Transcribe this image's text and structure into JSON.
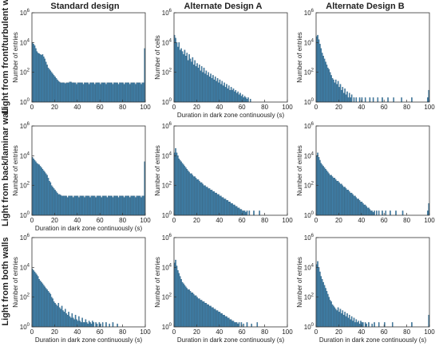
{
  "figure": {
    "column_titles": [
      "Standard design",
      "Alternate Design A",
      "Alternate Design B"
    ],
    "row_titles": [
      "Light from front/turbulent wall",
      "Light from back/laminar wall",
      "Light from both walls"
    ],
    "colors": {
      "bar_fill": "#3f7fa8",
      "bar_edge": "#1f4c6b",
      "axis": "#333333",
      "text": "#222222"
    }
  },
  "chart_data": [
    {
      "type": "bar",
      "row": 0,
      "col": 0,
      "xlabel": "",
      "ylabel": "Number of entries",
      "xlim": [
        0,
        100
      ],
      "ylim_log10": [
        0,
        6
      ],
      "xticks": [
        0,
        20,
        40,
        60,
        80,
        100
      ],
      "yticks": [
        0,
        2,
        4,
        6
      ],
      "bin_edges_x": [
        0,
        100
      ],
      "log10_counts": [
        4.0,
        3.9,
        3.8,
        3.6,
        3.4,
        3.3,
        3.25,
        3.2,
        3.15,
        3.2,
        3.05,
        2.9,
        2.7,
        2.5,
        2.3,
        2.2,
        2.1,
        2.0,
        1.9,
        1.8,
        1.7,
        1.6,
        1.5,
        1.4,
        1.35,
        1.3,
        1.3,
        1.3,
        1.3,
        1.25,
        1.3,
        1.3,
        1.3,
        1.35,
        1.35,
        1.3,
        1.3,
        1.3,
        1.3,
        1.2,
        1.3,
        1.3,
        1.3,
        1.3,
        1.3,
        1.2,
        1.3,
        1.3,
        1.3,
        1.3,
        1.2,
        1.3,
        1.3,
        1.3,
        1.3,
        1.2,
        1.3,
        1.3,
        1.3,
        1.3,
        1.2,
        1.3,
        1.3,
        1.3,
        1.3,
        1.2,
        1.3,
        1.3,
        1.3,
        1.3,
        1.3,
        1.2,
        1.3,
        1.3,
        1.3,
        1.3,
        1.2,
        1.3,
        1.3,
        1.3,
        1.3,
        1.2,
        1.3,
        1.3,
        1.3,
        1.3,
        1.2,
        1.3,
        1.3,
        1.3,
        1.3,
        1.2,
        1.3,
        1.3,
        1.3,
        1.3,
        1.2,
        1.3,
        1.3,
        3.6
      ]
    },
    {
      "type": "bar",
      "row": 0,
      "col": 1,
      "xlabel": "Duration in dark zone continuously (s)",
      "ylabel": "Number of cells",
      "xlim": [
        0,
        100
      ],
      "ylim_log10": [
        0,
        6
      ],
      "xticks": [
        0,
        20,
        40,
        60,
        80,
        100
      ],
      "yticks": [
        0,
        2,
        4,
        6
      ],
      "bin_edges_x": [
        0,
        100
      ],
      "log10_counts": [
        4.5,
        4.3,
        4.0,
        3.7,
        4.0,
        3.5,
        3.6,
        3.4,
        3.2,
        3.5,
        3.1,
        3.3,
        2.8,
        3.2,
        2.9,
        2.7,
        3.0,
        2.5,
        2.8,
        2.4,
        2.6,
        2.3,
        2.5,
        2.1,
        2.4,
        2.0,
        2.3,
        1.9,
        2.1,
        1.8,
        2.0,
        1.7,
        1.9,
        1.6,
        1.8,
        1.5,
        1.7,
        1.4,
        1.6,
        1.3,
        1.5,
        1.2,
        1.4,
        1.1,
        1.3,
        1.0,
        1.2,
        0.9,
        1.1,
        0.8,
        1.0,
        0.8,
        0.9,
        0.7,
        0.8,
        0.6,
        0.7,
        0.5,
        0.6,
        0.4,
        0.5,
        0.3,
        0.4,
        0.3,
        0.2,
        0.3,
        0.0,
        0.2,
        0.0,
        0.0,
        0.0,
        0.0,
        0.0,
        0.0,
        0.0,
        0.0,
        0.0,
        0.0,
        0.0,
        0.0,
        0.0,
        0.0,
        0.0,
        0.0,
        0.0,
        0.0,
        0.0,
        0.0,
        0.0,
        0.0,
        0.0,
        0.0,
        0.0,
        0.0,
        0.0,
        0.0,
        0.0,
        0.0,
        0.0,
        0.0
      ]
    },
    {
      "type": "bar",
      "row": 0,
      "col": 2,
      "xlabel": "",
      "ylabel": "Number of entries",
      "xlim": [
        0,
        100
      ],
      "ylim_log10": [
        0,
        6
      ],
      "xticks": [
        0,
        20,
        40,
        60,
        80,
        100
      ],
      "yticks": [
        0,
        2,
        4,
        6
      ],
      "bin_edges_x": [
        0,
        100
      ],
      "log10_counts": [
        4.4,
        4.5,
        4.2,
        3.9,
        3.6,
        3.3,
        3.1,
        2.9,
        2.7,
        2.5,
        2.3,
        2.2,
        2.0,
        1.8,
        1.6,
        1.5,
        1.3,
        1.5,
        1.2,
        1.4,
        1.0,
        1.2,
        0.8,
        1.0,
        0.6,
        0.9,
        0.5,
        0.7,
        0.3,
        0.6,
        0.3,
        0.5,
        0.0,
        0.3,
        0.0,
        0.3,
        0.0,
        0.0,
        0.3,
        0.0,
        0.3,
        0.0,
        0.0,
        0.3,
        0.0,
        0.0,
        0.0,
        0.3,
        0.0,
        0.0,
        0.3,
        0.0,
        0.0,
        0.0,
        0.3,
        0.0,
        0.0,
        0.0,
        0.3,
        0.0,
        0.0,
        0.0,
        0.0,
        0.3,
        0.0,
        0.0,
        0.0,
        0.0,
        0.3,
        0.0,
        0.0,
        0.0,
        0.0,
        0.0,
        0.0,
        0.3,
        0.0,
        0.0,
        0.0,
        0.0,
        0.0,
        0.0,
        0.0,
        0.0,
        0.3,
        0.0,
        0.0,
        0.0,
        0.0,
        0.0,
        0.0,
        0.0,
        0.0,
        0.0,
        0.0,
        0.0,
        0.0,
        0.0,
        0.3,
        0.8
      ]
    },
    {
      "type": "bar",
      "row": 1,
      "col": 0,
      "xlabel": "Duration in dark zone continuously (s)",
      "ylabel": "Number of entries",
      "xlim": [
        0,
        100
      ],
      "ylim_log10": [
        0,
        6
      ],
      "xticks": [
        0,
        20,
        40,
        60,
        80,
        100
      ],
      "yticks": [
        0,
        2,
        4,
        6
      ],
      "bin_edges_x": [
        0,
        100
      ],
      "log10_counts": [
        3.9,
        3.8,
        3.7,
        3.6,
        3.5,
        3.45,
        3.4,
        3.3,
        3.2,
        3.1,
        3.0,
        2.9,
        2.8,
        2.7,
        2.5,
        2.3,
        2.2,
        2.0,
        1.9,
        1.8,
        1.7,
        1.6,
        1.5,
        1.4,
        1.4,
        1.35,
        1.3,
        1.3,
        1.3,
        1.3,
        1.3,
        1.2,
        1.3,
        1.3,
        1.3,
        1.3,
        1.2,
        1.3,
        1.3,
        1.3,
        1.3,
        1.2,
        1.3,
        1.3,
        1.3,
        1.3,
        1.2,
        1.3,
        1.3,
        1.3,
        1.3,
        1.2,
        1.3,
        1.3,
        1.3,
        1.3,
        1.2,
        1.3,
        1.3,
        1.3,
        1.3,
        1.2,
        1.3,
        1.3,
        1.3,
        1.3,
        1.2,
        1.3,
        1.3,
        1.3,
        1.3,
        1.2,
        1.3,
        1.3,
        1.3,
        1.3,
        1.2,
        1.3,
        1.3,
        1.3,
        1.3,
        1.2,
        1.3,
        1.3,
        1.3,
        1.3,
        1.2,
        1.3,
        1.3,
        1.3,
        1.3,
        1.2,
        1.3,
        1.3,
        1.3,
        1.3,
        1.2,
        1.3,
        1.3,
        3.6
      ]
    },
    {
      "type": "bar",
      "row": 1,
      "col": 1,
      "xlabel": "",
      "ylabel": "Number of entries",
      "xlim": [
        0,
        100
      ],
      "ylim_log10": [
        0,
        6
      ],
      "xticks": [
        0,
        20,
        40,
        60,
        80,
        100
      ],
      "yticks": [
        0,
        2,
        4,
        6
      ],
      "bin_edges_x": [
        0,
        100
      ],
      "log10_counts": [
        4.2,
        4.5,
        4.2,
        4.0,
        3.8,
        3.7,
        3.6,
        3.5,
        3.4,
        3.3,
        3.2,
        3.1,
        3.0,
        2.9,
        2.8,
        2.8,
        2.7,
        2.6,
        2.6,
        2.5,
        2.4,
        2.4,
        2.3,
        2.2,
        2.2,
        2.1,
        2.0,
        2.0,
        1.9,
        1.9,
        1.8,
        1.8,
        1.7,
        1.7,
        1.6,
        1.6,
        1.5,
        1.5,
        1.4,
        1.4,
        1.3,
        1.3,
        1.2,
        1.2,
        1.1,
        1.1,
        1.0,
        1.0,
        0.9,
        0.9,
        0.8,
        0.8,
        0.7,
        0.7,
        0.6,
        0.6,
        0.5,
        0.5,
        0.4,
        0.4,
        0.3,
        0.3,
        0.3,
        0.2,
        0.3,
        0.0,
        0.3,
        0.0,
        0.0,
        0.0,
        0.3,
        0.0,
        0.0,
        0.0,
        0.0,
        0.3,
        0.0,
        0.0,
        0.0,
        0.0,
        0.0,
        0.0,
        0.0,
        0.0,
        0.0,
        0.0,
        0.0,
        0.0,
        0.0,
        0.0,
        0.0,
        0.0,
        0.0,
        0.0,
        0.0,
        0.0,
        0.0,
        0.0,
        0.0,
        0.0
      ]
    },
    {
      "type": "bar",
      "row": 1,
      "col": 2,
      "xlabel": "",
      "ylabel": "Number of entries",
      "xlim": [
        0,
        100
      ],
      "ylim_log10": [
        0,
        6
      ],
      "xticks": [
        0,
        20,
        40,
        60,
        80,
        100
      ],
      "yticks": [
        0,
        2,
        4,
        6
      ],
      "bin_edges_x": [
        0,
        100
      ],
      "log10_counts": [
        4.0,
        4.2,
        3.9,
        3.7,
        3.5,
        3.4,
        3.3,
        3.2,
        3.1,
        3.0,
        2.9,
        2.8,
        2.7,
        2.7,
        2.6,
        2.5,
        2.5,
        2.4,
        2.3,
        2.3,
        2.2,
        2.1,
        2.1,
        2.0,
        1.9,
        1.9,
        1.8,
        1.7,
        1.7,
        1.6,
        1.5,
        1.5,
        1.4,
        1.3,
        1.3,
        1.2,
        1.1,
        1.1,
        1.0,
        0.9,
        0.9,
        0.8,
        0.7,
        0.7,
        0.6,
        0.5,
        0.5,
        0.4,
        0.3,
        0.3,
        0.2,
        0.3,
        0.0,
        0.3,
        0.0,
        0.3,
        0.0,
        0.0,
        0.3,
        0.0,
        0.0,
        0.3,
        0.0,
        0.0,
        0.0,
        0.3,
        0.0,
        0.0,
        0.0,
        0.0,
        0.3,
        0.0,
        0.0,
        0.0,
        0.0,
        0.0,
        0.3,
        0.0,
        0.0,
        0.0,
        0.0,
        0.0,
        0.0,
        0.0,
        0.0,
        0.0,
        0.0,
        0.0,
        0.0,
        0.0,
        0.0,
        0.0,
        0.0,
        0.0,
        0.0,
        0.0,
        0.0,
        0.0,
        0.3,
        0.8
      ]
    },
    {
      "type": "bar",
      "row": 2,
      "col": 0,
      "xlabel": "Duration in dark zone continuously (s)",
      "ylabel": "Number of entries",
      "xlim": [
        0,
        100
      ],
      "ylim_log10": [
        0,
        6
      ],
      "xticks": [
        0,
        20,
        40,
        60,
        80,
        100
      ],
      "yticks": [
        0,
        2,
        4,
        6
      ],
      "bin_edges_x": [
        0,
        100
      ],
      "log10_counts": [
        3.9,
        3.8,
        3.7,
        3.6,
        3.5,
        3.4,
        3.2,
        3.1,
        3.0,
        2.9,
        2.8,
        2.7,
        2.6,
        2.5,
        2.4,
        2.3,
        2.2,
        2.0,
        1.9,
        1.7,
        1.6,
        1.5,
        1.4,
        1.6,
        1.3,
        1.2,
        1.4,
        1.1,
        1.0,
        1.2,
        0.9,
        0.8,
        1.0,
        0.7,
        0.6,
        0.9,
        0.6,
        0.5,
        0.8,
        0.5,
        0.4,
        0.7,
        0.4,
        0.3,
        0.6,
        0.3,
        0.3,
        0.5,
        0.3,
        0.2,
        0.4,
        0.3,
        0.2,
        0.4,
        0.3,
        0.0,
        0.3,
        0.2,
        0.0,
        0.3,
        0.2,
        0.0,
        0.3,
        0.0,
        0.0,
        0.3,
        0.0,
        0.0,
        0.2,
        0.0,
        0.0,
        0.3,
        0.0,
        0.0,
        0.0,
        0.2,
        0.0,
        0.0,
        0.0,
        0.0,
        0.0,
        0.0,
        0.0,
        0.0,
        0.0,
        0.0,
        0.0,
        0.0,
        0.0,
        0.0,
        0.0,
        0.0,
        0.0,
        0.0,
        0.0,
        0.0,
        0.0,
        0.0,
        0.0,
        0.0
      ]
    },
    {
      "type": "bar",
      "row": 2,
      "col": 1,
      "xlabel": "Duration in dark zone continuously (s)",
      "ylabel": "Number of entries",
      "xlim": [
        0,
        100
      ],
      "ylim_log10": [
        0,
        6
      ],
      "xticks": [
        0,
        20,
        40,
        60,
        80,
        100
      ],
      "yticks": [
        0,
        2,
        4,
        6
      ],
      "bin_edges_x": [
        0,
        100
      ],
      "log10_counts": [
        4.3,
        4.5,
        4.1,
        3.8,
        3.6,
        3.4,
        3.2,
        3.0,
        2.9,
        2.8,
        2.7,
        2.6,
        2.5,
        2.5,
        2.4,
        2.3,
        2.3,
        2.2,
        2.1,
        2.1,
        2.0,
        1.9,
        1.9,
        1.8,
        1.8,
        1.7,
        1.7,
        1.6,
        1.6,
        1.5,
        1.5,
        1.4,
        1.4,
        1.3,
        1.3,
        1.2,
        1.2,
        1.1,
        1.1,
        1.0,
        1.0,
        0.9,
        0.9,
        0.8,
        0.8,
        0.7,
        0.7,
        0.6,
        0.6,
        0.5,
        0.5,
        0.4,
        0.4,
        0.3,
        0.3,
        0.3,
        0.2,
        0.3,
        0.0,
        0.3,
        0.0,
        0.2,
        0.0,
        0.0,
        0.3,
        0.0,
        0.0,
        0.0,
        0.2,
        0.0,
        0.0,
        0.0,
        0.0,
        0.3,
        0.0,
        0.0,
        0.0,
        0.0,
        0.0,
        0.0,
        0.0,
        0.0,
        0.0,
        0.0,
        0.0,
        0.0,
        0.0,
        0.0,
        0.0,
        0.0,
        0.0,
        0.0,
        0.0,
        0.0,
        0.0,
        0.0,
        0.0,
        0.0,
        0.0,
        0.0
      ]
    },
    {
      "type": "bar",
      "row": 2,
      "col": 2,
      "xlabel": "Duration in dark zone continuously (s)",
      "ylabel": "Number of entries",
      "xlim": [
        0,
        100
      ],
      "ylim_log10": [
        0,
        6
      ],
      "xticks": [
        0,
        20,
        40,
        60,
        80,
        100
      ],
      "yticks": [
        0,
        2,
        4,
        6
      ],
      "bin_edges_x": [
        0,
        100
      ],
      "log10_counts": [
        4.2,
        4.4,
        4.0,
        3.7,
        3.4,
        3.2,
        3.0,
        2.8,
        2.6,
        2.4,
        2.2,
        2.0,
        1.8,
        1.7,
        1.5,
        1.4,
        1.3,
        1.2,
        1.1,
        1.3,
        1.0,
        1.2,
        0.9,
        1.1,
        0.8,
        1.0,
        0.7,
        0.9,
        0.6,
        0.8,
        0.5,
        0.7,
        0.4,
        0.6,
        0.3,
        0.5,
        0.3,
        0.4,
        0.2,
        0.4,
        0.3,
        0.3,
        0.0,
        0.3,
        0.2,
        0.0,
        0.3,
        0.0,
        0.0,
        0.2,
        0.0,
        0.3,
        0.0,
        0.0,
        0.0,
        0.3,
        0.0,
        0.0,
        0.0,
        0.0,
        0.3,
        0.0,
        0.0,
        0.0,
        0.0,
        0.0,
        0.0,
        0.3,
        0.0,
        0.0,
        0.0,
        0.0,
        0.0,
        0.0,
        0.0,
        0.0,
        0.0,
        0.0,
        0.0,
        0.0,
        0.0,
        0.0,
        0.0,
        0.0,
        0.3,
        0.0,
        0.0,
        0.0,
        0.0,
        0.0,
        0.0,
        0.0,
        0.0,
        0.0,
        0.0,
        0.0,
        0.0,
        0.0,
        0.0,
        0.8
      ]
    }
  ]
}
